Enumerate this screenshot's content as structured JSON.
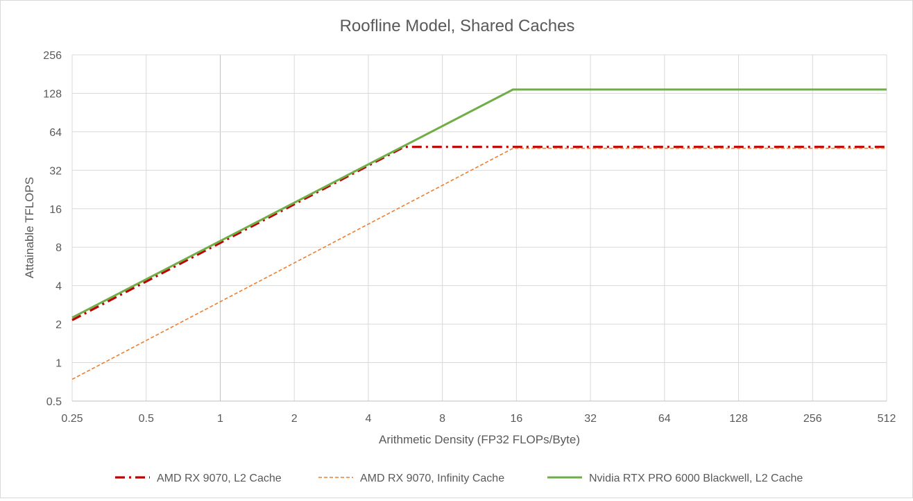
{
  "chart_data": {
    "type": "line",
    "title": "Roofline Model, Shared Caches",
    "xlabel": "Arithmetic Density (FP32 FLOPs/Byte)",
    "ylabel": "Attainable TFLOPS",
    "x_scale": "log2",
    "y_scale": "log2",
    "xlim": [
      0.25,
      512
    ],
    "ylim": [
      0.5,
      256
    ],
    "x_ticks": [
      "0.25",
      "0.5",
      "1",
      "2",
      "4",
      "8",
      "16",
      "32",
      "64",
      "128",
      "256",
      "512"
    ],
    "y_ticks": [
      "0.5",
      "1",
      "2",
      "4",
      "8",
      "16",
      "32",
      "64",
      "128",
      "256"
    ],
    "grid": true,
    "legend_position": "bottom",
    "series": [
      {
        "name": "AMD RX 9070, L2 Cache",
        "color": "#c00000",
        "line_style": "dash-dot",
        "points": [
          [
            0.25,
            2.15
          ],
          [
            5.6,
            48.7
          ],
          [
            512,
            48.7
          ]
        ]
      },
      {
        "name": "AMD RX 9070, Infinity Cache",
        "color": "#ed7d31",
        "line_style": "dashed",
        "points": [
          [
            0.25,
            0.74
          ],
          [
            15.5,
            47.5
          ],
          [
            512,
            47.5
          ]
        ]
      },
      {
        "name": "Nvidia RTX PRO 6000 Blackwell, L2 Cache",
        "color": "#70ad47",
        "line_style": "solid",
        "points": [
          [
            0.25,
            2.25
          ],
          [
            15.5,
            137
          ],
          [
            512,
            137
          ]
        ]
      }
    ]
  }
}
